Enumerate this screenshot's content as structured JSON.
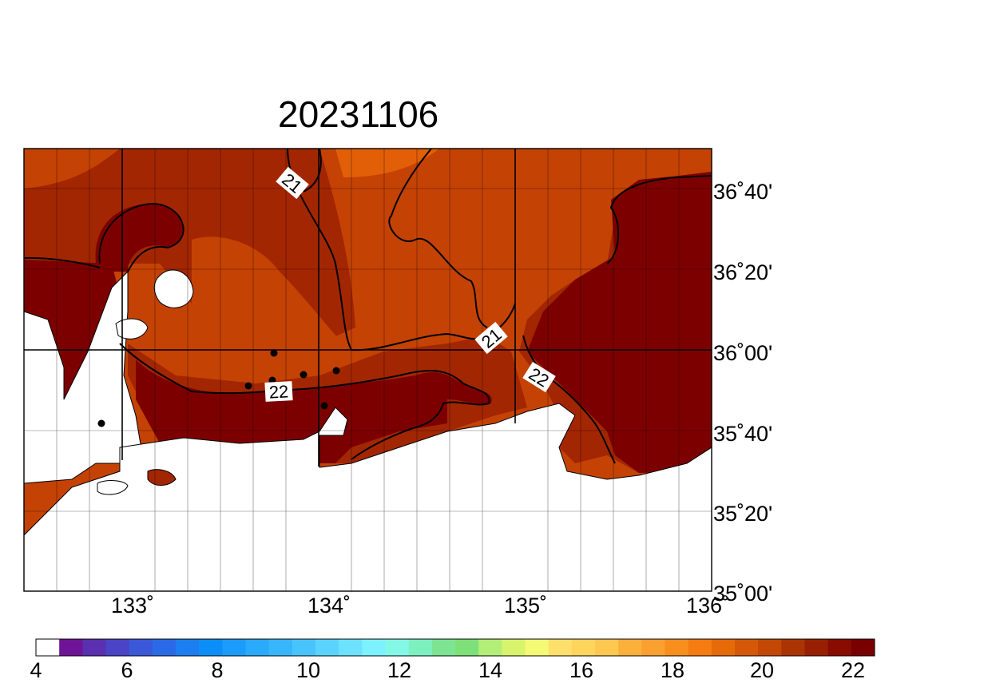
{
  "title": "20231106",
  "map": {
    "lat_labels": [
      "36˚40'",
      "36˚20'",
      "36˚00'",
      "35˚40'",
      "35˚20'",
      "35˚00'"
    ],
    "lon_labels": [
      "133˚",
      "134˚",
      "135˚",
      "136˚"
    ],
    "contour_labels": [
      "21",
      "21",
      "22",
      "22"
    ],
    "colors": {
      "land": "#ffffff",
      "c19": "#e25f08",
      "c20": "#c44204",
      "c21": "#a32602",
      "c22": "#7d0000",
      "grid": "#000000"
    }
  },
  "colorbar": {
    "tick_labels": [
      "4",
      "6",
      "8",
      "10",
      "12",
      "14",
      "16",
      "18",
      "20",
      "22"
    ],
    "colors": [
      "#ffffff",
      "#6e1496",
      "#5a2fb0",
      "#4a44c6",
      "#3a58d8",
      "#2a6ae6",
      "#1c7ef0",
      "#0b8ef8",
      "#1c9cfa",
      "#2aaafb",
      "#38b6fc",
      "#48c4fd",
      "#5ad4fe",
      "#6ce2fe",
      "#7cf2fe",
      "#84f8e6",
      "#7df0c0",
      "#7de494",
      "#7ee078",
      "#b2ee78",
      "#d8f46c",
      "#f4fa74",
      "#fde06c",
      "#fdd45c",
      "#fdc850",
      "#fbb03c",
      "#faa030",
      "#f88e1e",
      "#f57c10",
      "#e56a08",
      "#d45808",
      "#c24804",
      "#aa3404",
      "#982002",
      "#880c00",
      "#780000"
    ]
  }
}
